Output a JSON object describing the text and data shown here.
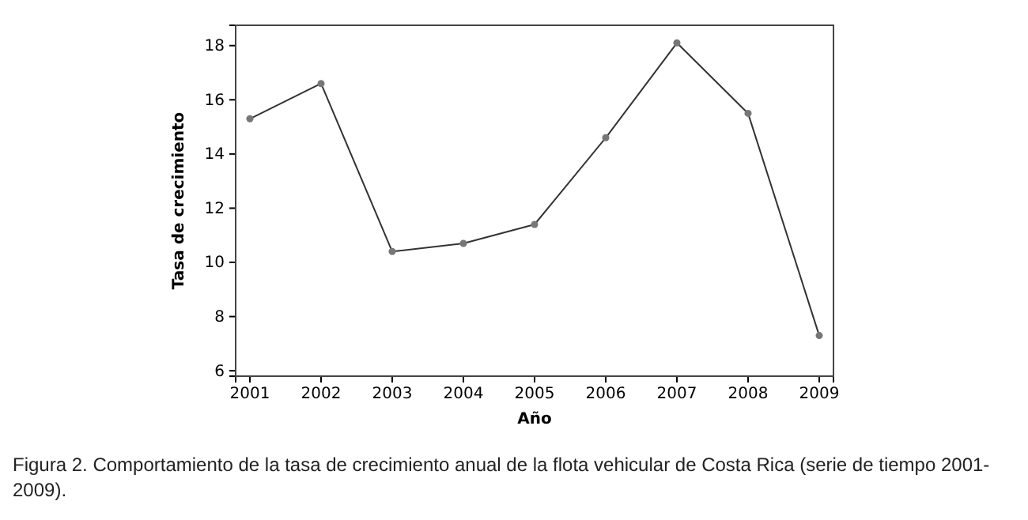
{
  "chart_data": {
    "type": "line",
    "xlabel": "Año",
    "ylabel": "Tasa de crecimiento",
    "x": [
      2001,
      2002,
      2003,
      2004,
      2005,
      2006,
      2007,
      2008,
      2009
    ],
    "series": [
      {
        "color": "#333333",
        "values": [
          15.3,
          16.6,
          10.4,
          10.7,
          11.4,
          14.6,
          18.1,
          15.5,
          7.3
        ]
      }
    ],
    "xlim": [
      2000.8,
      2009.2
    ],
    "xticks": [
      2001,
      2002,
      2003,
      2004,
      2005,
      2006,
      2007,
      2008,
      2009
    ],
    "ylim": [
      5.8,
      18.75
    ],
    "yticks": [
      6,
      8,
      10,
      12,
      14,
      16,
      18
    ],
    "marker": "circle",
    "line_style": "solid",
    "grid": false,
    "annotations": [
      "Figura 2. Comportamiento de la tasa de crecimiento anual de la flota vehicular de Costa Rica (serie de tiempo 2001-2009)."
    ]
  }
}
